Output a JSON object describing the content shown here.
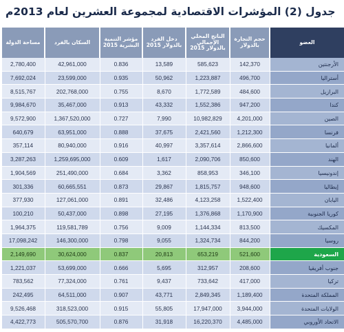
{
  "title": "جدول (2) المؤشرات الاقتصادية لمجموعة العشرين لعام 2013م",
  "columns": [
    "العضو",
    "حجم التجارة بالدولار",
    "الناتج المحلي الإجمالي بالدولار 2015",
    "دخل الفرد بالدولار 2015",
    "مؤشر التنمية البشرية 2015",
    "السكان بالفرد",
    "مساحة الدولة"
  ],
  "highlight_color": "#1ea64a",
  "rows": [
    [
      "الأرجنتين",
      "142,370",
      "585,623",
      "13,589",
      "0.836",
      "42,961,000",
      "2,780,400"
    ],
    [
      "أستراليا",
      "496,700",
      "1,223,887",
      "50,962",
      "0.935",
      "23,599,000",
      "7,692,024"
    ],
    [
      "البرازيل",
      "484,600",
      "1,772,589",
      "8,670",
      "0.755",
      "202,768,000",
      "8,515,767"
    ],
    [
      "كندا",
      "947,200",
      "1,552,386",
      "43,332",
      "0.913",
      "35,467,000",
      "9,984,670"
    ],
    [
      "الصين",
      "4,201,000",
      "10,982,829",
      "7,990",
      "0.727",
      "1,367,520,000",
      "9,572,900"
    ],
    [
      "فرنسا",
      "1,212,300",
      "2,421,560",
      "37,675",
      "0.888",
      "63,951,000",
      "640,679"
    ],
    [
      "ألمانيا",
      "2,866,600",
      "3,357,614",
      "40,997",
      "0.916",
      "80,940,000",
      "357,114"
    ],
    [
      "الهند",
      "850,600",
      "2,090,706",
      "1,617",
      "0.609",
      "1,259,695,000",
      "3,287,263"
    ],
    [
      "إندونيسيا",
      "346,100",
      "858,953",
      "3,362",
      "0.684",
      "251,490,000",
      "1,904,569"
    ],
    [
      "إيطاليا",
      "948,600",
      "1,815,757",
      "29,867",
      "0.873",
      "60,665,551",
      "301,336"
    ],
    [
      "اليابان",
      "1,522,400",
      "4,123,258",
      "32,486",
      "0.891",
      "127,061,000",
      "377,930"
    ],
    [
      "كوريا الجنوبية",
      "1,170,900",
      "1,376,868",
      "27,195",
      "0.898",
      "50,437,000",
      "100,210"
    ],
    [
      "المكسيك",
      "813,500",
      "1,144,334",
      "9,009",
      "0.756",
      "119,581,789",
      "1,964,375"
    ],
    [
      "روسيا",
      "844,200",
      "1,324,734",
      "9,055",
      "0.798",
      "146,300,000",
      "17,098,242"
    ],
    [
      "السعودية",
      "521,600",
      "653,219",
      "20,813",
      "0.837",
      "30,624,000",
      "2,149,690"
    ],
    [
      "جنوب أفريقيا",
      "208,600",
      "312,957",
      "5,695",
      "0.666",
      "53,699,000",
      "1,221,037"
    ],
    [
      "تركيا",
      "417,000",
      "733,642",
      "9,437",
      "0.761",
      "77,324,000",
      "783,562"
    ],
    [
      "المملكة المتحدة",
      "1,189,400",
      "2,849,345",
      "43,771",
      "0.907",
      "64,511,000",
      "242,495"
    ],
    [
      "الولايات المتحدة",
      "3,944,000",
      "17,947,000",
      "55,805",
      "0.915",
      "318,523,000",
      "9,526,468"
    ],
    [
      "الاتحاد الأوروبي",
      "4,485,000",
      "16,220,370",
      "31,918",
      "0.876",
      "505,570,700",
      "4,422,773"
    ]
  ],
  "highlight_row": 14
}
